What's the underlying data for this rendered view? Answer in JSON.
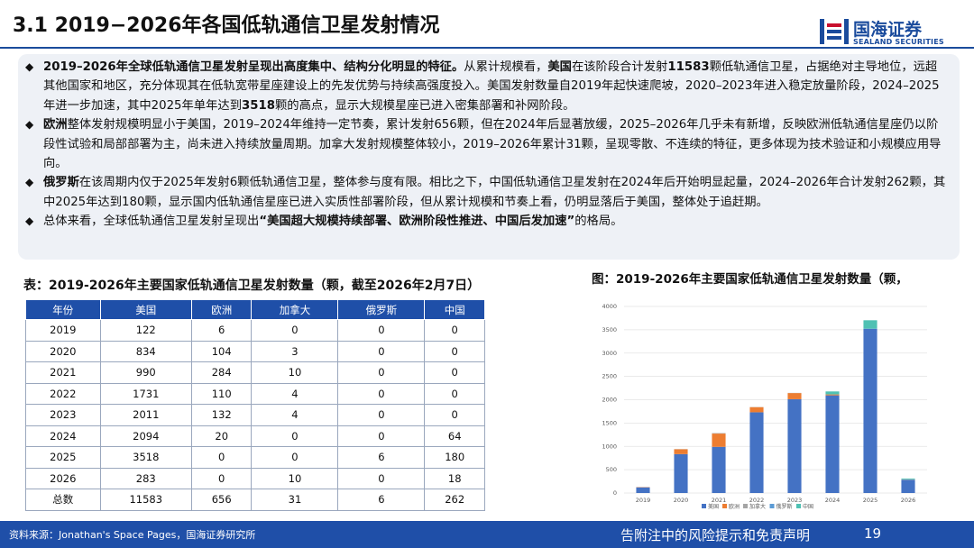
{
  "slide": {
    "title": "3.1 2019−2026年各国低轨通信卫星发射情况"
  },
  "logo": {
    "name_cn": "国海证券",
    "name_en": "SEALAND SECURITIES"
  },
  "summary": {
    "p1": [
      {
        "t": "2019–2026年全球低轨通信卫星发射呈现出高度集中、结构分化明显的特征。",
        "b": true
      },
      {
        "t": "从累计规模看，",
        "b": false
      },
      {
        "t": "美国",
        "b": true
      },
      {
        "t": "在该阶段合计发射",
        "b": false
      },
      {
        "t": "11583",
        "b": true
      },
      {
        "t": "颗低轨通信卫星，占据绝对主导地位，远超其他国家和地区，充分体现其在低轨宽带星座建设上的先发优势与持续高强度投入。美国发射数量自2019年起快速爬坡，2020–2023年进入稳定放量阶段，2024–2025年进一步加速，其中2025年单年达到",
        "b": false
      },
      {
        "t": "3518",
        "b": true
      },
      {
        "t": "颗的高点，显示大规模星座已进入密集部署和补网阶段。",
        "b": false
      }
    ],
    "p2": [
      {
        "t": "欧洲",
        "b": true
      },
      {
        "t": "整体发射规模明显小于美国，2019–2024年维持一定节奏，累计发射656颗，但在2024年后显著放缓，2025–2026年几乎未有新增，反映欧洲低轨通信星座仍以阶段性试验和局部部署为主，尚未进入持续放量周期。加拿大发射规模整体较小，2019–2026年累计31颗，呈现零散、不连续的特征，更多体现为技术验证和小规模应用导向。",
        "b": false
      }
    ],
    "p3": [
      {
        "t": "俄罗斯",
        "b": true
      },
      {
        "t": "在该周期内仅于2025年发射6颗低轨通信卫星，整体参与度有限。相比之下，中国低轨通信卫星发射在2024年后开始明显起量，2024–2026年合计发射262颗，其中2025年达到180颗，显示国内低轨通信星座已进入实质性部署阶段，但从累计规模和节奏上看，仍明显落后于美国，整体处于追赶期。",
        "b": false
      }
    ],
    "p4": [
      {
        "t": "总体来看，全球低轨通信卫星发射呈现出",
        "b": false
      },
      {
        "t": "“美国超大规模持续部署、欧洲阶段性推进、中国后发加速”",
        "b": true
      },
      {
        "t": "的格局。",
        "b": false
      }
    ]
  },
  "table": {
    "caption": "表：2019-2026年主要国家低轨通信卫星发射数量（颗，截至2026年2月7日）",
    "headers": [
      "年份",
      "美国",
      "欧洲",
      "加拿大",
      "俄罗斯",
      "中国"
    ],
    "rows": [
      [
        "2019",
        "122",
        "6",
        "0",
        "0",
        "0"
      ],
      [
        "2020",
        "834",
        "104",
        "3",
        "0",
        "0"
      ],
      [
        "2021",
        "990",
        "284",
        "10",
        "0",
        "0"
      ],
      [
        "2022",
        "1731",
        "110",
        "4",
        "0",
        "0"
      ],
      [
        "2023",
        "2011",
        "132",
        "4",
        "0",
        "0"
      ],
      [
        "2024",
        "2094",
        "20",
        "0",
        "0",
        "64"
      ],
      [
        "2025",
        "3518",
        "0",
        "0",
        "6",
        "180"
      ],
      [
        "2026",
        "283",
        "0",
        "10",
        "0",
        "18"
      ],
      [
        "总数",
        "11583",
        "656",
        "31",
        "6",
        "262"
      ]
    ]
  },
  "chart_data": {
    "type": "bar",
    "stacked": true,
    "title": "图：2019-2026年主要国家低轨通信卫星发射数量（颗，",
    "categories": [
      "2019",
      "2020",
      "2021",
      "2022",
      "2023",
      "2024",
      "2025",
      "2026"
    ],
    "ylim": [
      0,
      4000
    ],
    "yticks": [
      0,
      500,
      1000,
      1500,
      2000,
      2500,
      3000,
      3500,
      4000
    ],
    "grid": true,
    "legend_position": "bottom",
    "series": [
      {
        "name": "美国",
        "color": "#4472c4",
        "values": [
          122,
          834,
          990,
          1731,
          2011,
          2094,
          3518,
          283
        ]
      },
      {
        "name": "欧洲",
        "color": "#ed7d31",
        "values": [
          6,
          104,
          284,
          110,
          132,
          20,
          0,
          0
        ]
      },
      {
        "name": "加拿大",
        "color": "#a5a5a5",
        "values": [
          0,
          3,
          10,
          4,
          4,
          0,
          0,
          10
        ]
      },
      {
        "name": "俄罗斯",
        "color": "#5b9bd5",
        "values": [
          0,
          0,
          0,
          0,
          0,
          0,
          6,
          0
        ]
      },
      {
        "name": "中国",
        "color": "#4fc1b3",
        "values": [
          0,
          0,
          0,
          0,
          0,
          64,
          180,
          18
        ]
      }
    ]
  },
  "footer": {
    "source": "资料来源：Jonathan's Space Pages，国海证券研究所",
    "disclaimer": "告附注中的风险提示和免责声明",
    "page": "19"
  }
}
